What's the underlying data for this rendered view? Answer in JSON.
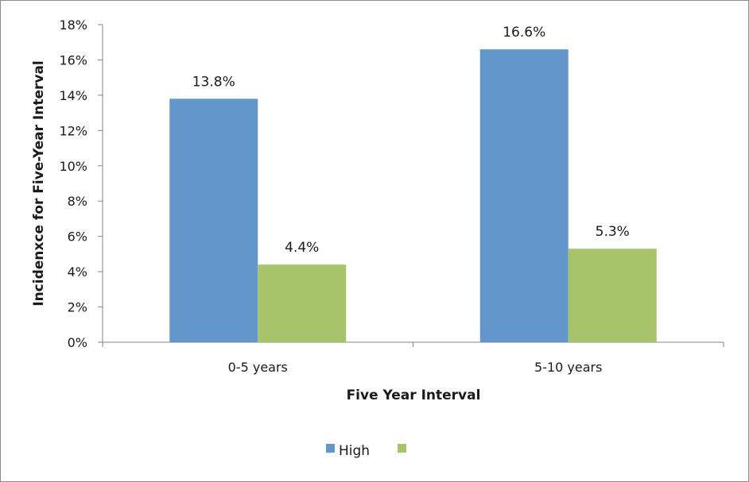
{
  "chart_data": {
    "type": "bar",
    "title": "",
    "xlabel": "Five Year Interval",
    "ylabel": "Incidenxce for Five-Year Interval",
    "categories": [
      "0-5 years",
      "5-10 years"
    ],
    "series": [
      {
        "name": "High",
        "values": [
          13.8,
          16.6
        ],
        "data_labels": [
          "13.8%",
          "16.6%"
        ],
        "color": "#6396cb"
      },
      {
        "name": "",
        "values": [
          4.4,
          5.3
        ],
        "data_labels": [
          "4.4%",
          "5.3%"
        ],
        "color": "#a7c46a"
      }
    ],
    "ylim": [
      0,
      18
    ],
    "yticks": [
      0,
      2,
      4,
      6,
      8,
      10,
      12,
      14,
      16,
      18
    ],
    "ytick_labels": [
      "0%",
      "2%",
      "4%",
      "6%",
      "8%",
      "10%",
      "12%",
      "14%",
      "16%",
      "18%"
    ],
    "grid": false,
    "legend_position": "bottom",
    "axis_color": "#868686"
  }
}
